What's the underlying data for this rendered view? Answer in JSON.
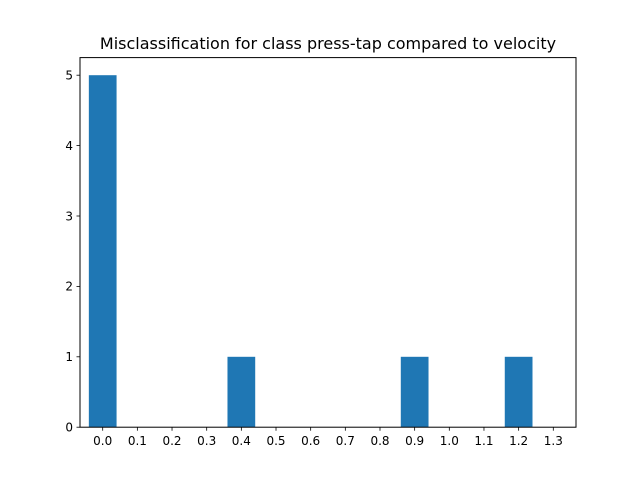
{
  "chart_data": {
    "type": "bar",
    "title": "Misclassification for class press-tap compared to velocity",
    "xlabel": "",
    "ylabel": "",
    "x_ticks": [
      "0.0",
      "0.1",
      "0.2",
      "0.3",
      "0.4",
      "0.5",
      "0.6",
      "0.7",
      "0.8",
      "0.9",
      "1.0",
      "1.1",
      "1.2",
      "1.3"
    ],
    "y_ticks": [
      "0",
      "1",
      "2",
      "3",
      "4",
      "5"
    ],
    "bars": [
      {
        "x": 0.0,
        "value": 5
      },
      {
        "x": 0.4,
        "value": 1
      },
      {
        "x": 0.9,
        "value": 1
      },
      {
        "x": 1.2,
        "value": 1
      }
    ],
    "bar_width": 0.08,
    "xlim": [
      -0.0655,
      1.3655
    ],
    "ylim": [
      0,
      5.25
    ],
    "grid": false,
    "legend": "none",
    "bar_color": "#1f77b4"
  }
}
